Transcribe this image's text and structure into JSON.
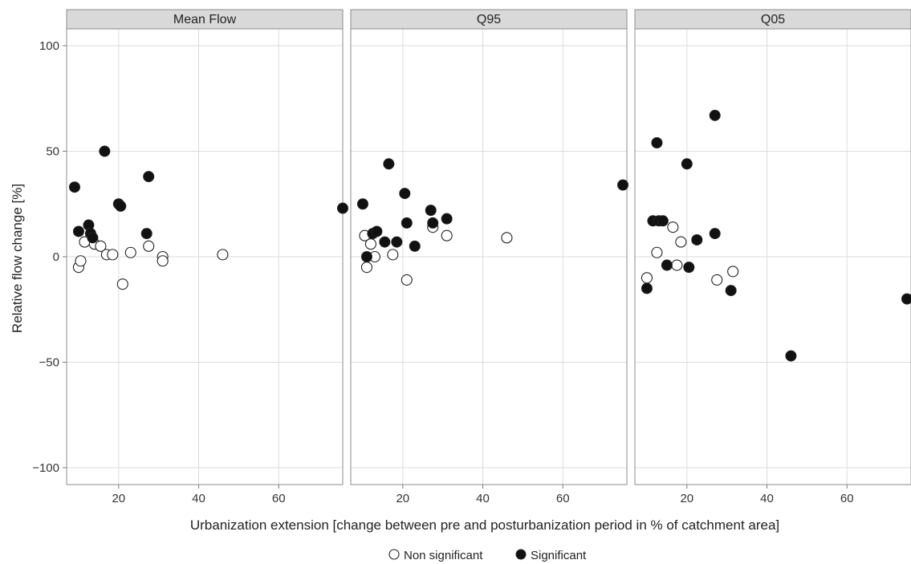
{
  "chart_data": {
    "type": "scatter",
    "xlabel": "Urbanization extension [change between pre and posturbanization period in % of catchment area]",
    "ylabel": "Relative flow change [%]",
    "xlim": [
      7,
      76
    ],
    "ylim": [
      -108,
      108
    ],
    "xticks": [
      20,
      40,
      60
    ],
    "yticks": [
      100,
      50,
      0,
      -50,
      -100
    ],
    "yticklabels": [
      "100",
      "50",
      "0",
      "−50",
      "−100"
    ],
    "grid": true,
    "legend": {
      "position": "bottom",
      "entries": [
        {
          "key": "non_significant",
          "label": "Non significant",
          "marker": "open-circle"
        },
        {
          "key": "significant",
          "label": "Significant",
          "marker": "filled-circle"
        }
      ]
    },
    "colors": {
      "significant": "#111111",
      "non_significant": "#ffffff",
      "outline": "#222222",
      "panel_bg": "#ffffff",
      "strip_bg": "#d9d9d9",
      "grid": "#dcdcdc"
    },
    "panels": [
      {
        "title": "Mean Flow",
        "significant": [
          [
            9,
            33
          ],
          [
            10,
            12
          ],
          [
            12.5,
            15
          ],
          [
            13,
            11
          ],
          [
            13.5,
            9
          ],
          [
            16.5,
            50
          ],
          [
            20,
            25
          ],
          [
            20.5,
            24
          ],
          [
            27,
            11
          ],
          [
            27.5,
            38
          ],
          [
            76,
            23
          ]
        ],
        "non_significant": [
          [
            10,
            -5
          ],
          [
            10.5,
            -2
          ],
          [
            11.5,
            7
          ],
          [
            14,
            6
          ],
          [
            15.5,
            5
          ],
          [
            17,
            1
          ],
          [
            18.5,
            1
          ],
          [
            21,
            -13
          ],
          [
            23,
            2
          ],
          [
            27.5,
            5
          ],
          [
            31,
            0
          ],
          [
            31,
            -2
          ],
          [
            46,
            1
          ]
        ]
      },
      {
        "title": "Q95",
        "significant": [
          [
            10,
            25
          ],
          [
            11,
            0
          ],
          [
            12.5,
            11
          ],
          [
            13.5,
            12
          ],
          [
            15.5,
            7
          ],
          [
            16.5,
            44
          ],
          [
            18.5,
            7
          ],
          [
            20.5,
            30
          ],
          [
            21,
            16
          ],
          [
            23,
            5
          ],
          [
            27,
            22
          ],
          [
            27.5,
            16
          ],
          [
            31,
            18
          ],
          [
            75,
            34
          ]
        ],
        "non_significant": [
          [
            10.5,
            10
          ],
          [
            11,
            -5
          ],
          [
            12,
            6
          ],
          [
            13,
            0
          ],
          [
            17.5,
            1
          ],
          [
            21,
            -11
          ],
          [
            27.5,
            14
          ],
          [
            31,
            10
          ],
          [
            46,
            9
          ]
        ]
      },
      {
        "title": "Q05",
        "significant": [
          [
            10,
            -15
          ],
          [
            11.5,
            17
          ],
          [
            12.5,
            54
          ],
          [
            13,
            17
          ],
          [
            14,
            17
          ],
          [
            15,
            -4
          ],
          [
            20,
            44
          ],
          [
            20.5,
            -5
          ],
          [
            22.5,
            8
          ],
          [
            27,
            67
          ],
          [
            27,
            11
          ],
          [
            31,
            -16
          ],
          [
            46,
            -47
          ],
          [
            75,
            -20
          ]
        ],
        "non_significant": [
          [
            10,
            -10
          ],
          [
            12.5,
            2
          ],
          [
            16.5,
            14
          ],
          [
            17.5,
            -4
          ],
          [
            18.5,
            7
          ],
          [
            27.5,
            -11
          ],
          [
            31.5,
            -7
          ]
        ]
      }
    ]
  }
}
